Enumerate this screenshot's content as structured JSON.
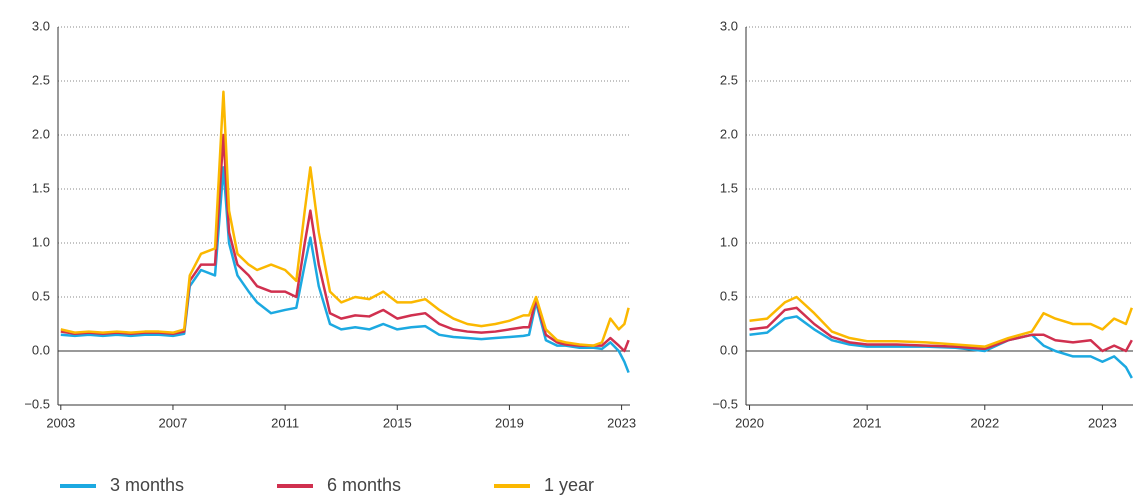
{
  "chart_data": [
    {
      "type": "line",
      "x": [
        2003,
        2003.5,
        2004,
        2004.5,
        2005,
        2005.5,
        2006,
        2006.5,
        2007,
        2007.4,
        2007.6,
        2008,
        2008.5,
        2008.8,
        2009,
        2009.3,
        2009.7,
        2010,
        2010.5,
        2011,
        2011.4,
        2011.7,
        2011.9,
        2012.2,
        2012.6,
        2013,
        2013.5,
        2014,
        2014.5,
        2015,
        2015.5,
        2016,
        2016.5,
        2017,
        2017.5,
        2018,
        2018.5,
        2019,
        2019.5,
        2019.7,
        2019.95,
        2020.3,
        2020.7,
        2021,
        2021.5,
        2022,
        2022.3,
        2022.6,
        2022.9,
        2023.1,
        2023.25
      ],
      "series": [
        {
          "name": "3 months",
          "color": "#1ca9e1",
          "values": [
            0.15,
            0.14,
            0.15,
            0.14,
            0.15,
            0.14,
            0.15,
            0.15,
            0.14,
            0.16,
            0.6,
            0.75,
            0.7,
            1.7,
            1.0,
            0.7,
            0.55,
            0.45,
            0.35,
            0.38,
            0.4,
            0.8,
            1.05,
            0.6,
            0.25,
            0.2,
            0.22,
            0.2,
            0.25,
            0.2,
            0.22,
            0.23,
            0.15,
            0.13,
            0.12,
            0.11,
            0.12,
            0.13,
            0.14,
            0.15,
            0.45,
            0.1,
            0.05,
            0.05,
            0.03,
            0.03,
            0.02,
            0.08,
            0.0,
            -0.1,
            -0.2
          ]
        },
        {
          "name": "6 months",
          "color": "#d0304f",
          "values": [
            0.18,
            0.16,
            0.17,
            0.16,
            0.17,
            0.16,
            0.17,
            0.17,
            0.16,
            0.18,
            0.65,
            0.8,
            0.8,
            2.0,
            1.1,
            0.8,
            0.7,
            0.6,
            0.55,
            0.55,
            0.5,
            1.0,
            1.3,
            0.8,
            0.35,
            0.3,
            0.33,
            0.32,
            0.38,
            0.3,
            0.33,
            0.35,
            0.25,
            0.2,
            0.18,
            0.17,
            0.18,
            0.2,
            0.22,
            0.22,
            0.48,
            0.15,
            0.08,
            0.06,
            0.05,
            0.05,
            0.05,
            0.12,
            0.05,
            0.0,
            0.1
          ]
        },
        {
          "name": "1 year",
          "color": "#fbb800",
          "values": [
            0.2,
            0.17,
            0.18,
            0.17,
            0.18,
            0.17,
            0.18,
            0.18,
            0.17,
            0.2,
            0.7,
            0.9,
            0.95,
            2.4,
            1.3,
            0.9,
            0.8,
            0.75,
            0.8,
            0.75,
            0.65,
            1.3,
            1.7,
            1.1,
            0.55,
            0.45,
            0.5,
            0.48,
            0.55,
            0.45,
            0.45,
            0.48,
            0.38,
            0.3,
            0.25,
            0.23,
            0.25,
            0.28,
            0.33,
            0.33,
            0.5,
            0.2,
            0.1,
            0.08,
            0.06,
            0.05,
            0.08,
            0.3,
            0.2,
            0.25,
            0.4
          ]
        }
      ],
      "xlim": [
        2002.9,
        2023.3
      ],
      "xticks": [
        2003,
        2007,
        2011,
        2015,
        2019,
        2023
      ],
      "ylim": [
        -0.5,
        3.0
      ],
      "yticks": [
        {
          "value": -0.5,
          "label": "−0.5"
        },
        {
          "value": 0,
          "label": "0.0"
        },
        0.5,
        {
          "value": 1,
          "label": "1.0"
        },
        1.5,
        {
          "value": 2,
          "label": "2.0"
        },
        2.5,
        {
          "value": 3,
          "label": "3.0"
        }
      ],
      "grid": true,
      "legend": "bottom"
    },
    {
      "type": "line",
      "x": [
        2020,
        2020.15,
        2020.3,
        2020.4,
        2020.55,
        2020.7,
        2020.85,
        2021,
        2021.25,
        2021.5,
        2021.75,
        2022,
        2022.2,
        2022.4,
        2022.5,
        2022.6,
        2022.75,
        2022.9,
        2023,
        2023.1,
        2023.2,
        2023.25
      ],
      "series": [
        {
          "color": "#1ca9e1",
          "values": [
            0.15,
            0.17,
            0.3,
            0.32,
            0.2,
            0.1,
            0.06,
            0.04,
            0.04,
            0.04,
            0.03,
            0.0,
            0.1,
            0.15,
            0.05,
            0.0,
            -0.05,
            -0.05,
            -0.1,
            -0.05,
            -0.15,
            -0.25
          ]
        },
        {
          "color": "#d0304f",
          "values": [
            0.2,
            0.22,
            0.38,
            0.4,
            0.25,
            0.13,
            0.08,
            0.06,
            0.06,
            0.05,
            0.04,
            0.02,
            0.1,
            0.15,
            0.15,
            0.1,
            0.08,
            0.1,
            0.0,
            0.05,
            0.0,
            0.1
          ]
        },
        {
          "color": "#fbb800",
          "values": [
            0.28,
            0.3,
            0.45,
            0.5,
            0.35,
            0.18,
            0.12,
            0.09,
            0.09,
            0.08,
            0.06,
            0.04,
            0.12,
            0.18,
            0.35,
            0.3,
            0.25,
            0.25,
            0.2,
            0.3,
            0.25,
            0.4
          ]
        }
      ],
      "xlim": [
        2019.97,
        2023.26
      ],
      "xticks": [
        2020,
        2021,
        2022,
        2023
      ],
      "ylim": [
        -0.5,
        3.0
      ],
      "yticks": [
        {
          "value": -0.5,
          "label": "−0.5"
        },
        {
          "value": 0,
          "label": "0.0"
        },
        0.5,
        {
          "value": 1,
          "label": "1.0"
        },
        1.5,
        {
          "value": 2,
          "label": "2.0"
        },
        2.5,
        {
          "value": 3,
          "label": "3.0"
        }
      ],
      "grid": true
    }
  ]
}
